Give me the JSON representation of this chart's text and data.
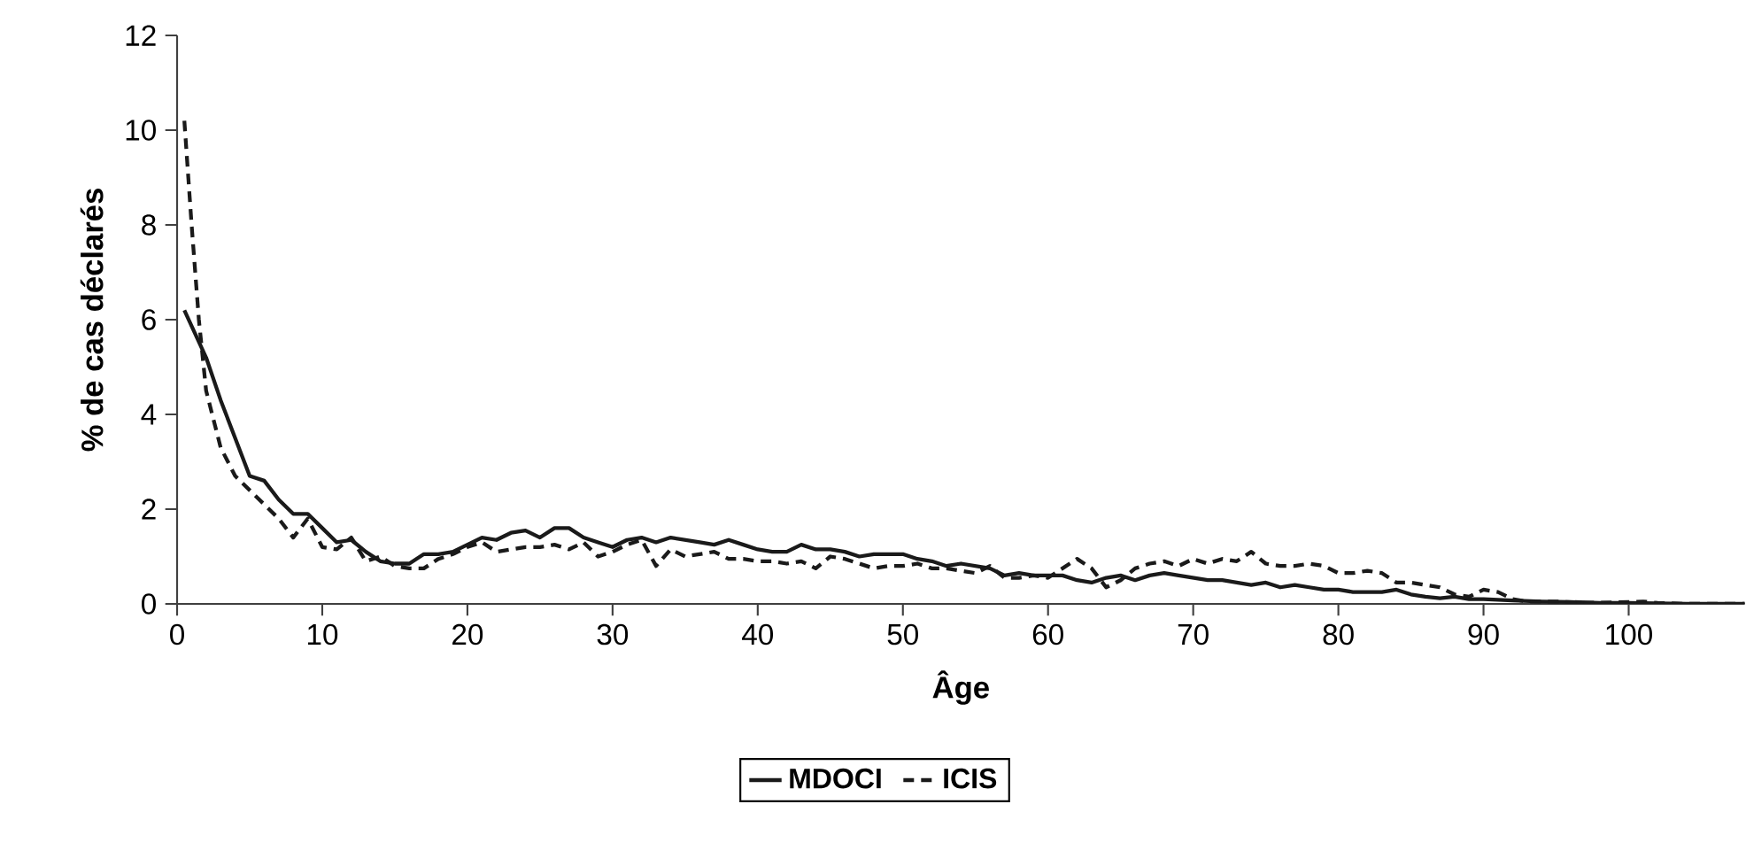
{
  "chart_data": {
    "type": "line",
    "xlabel": "Âge",
    "ylabel": "% de cas déclarés",
    "xlim": [
      0,
      108
    ],
    "ylim": [
      0,
      12
    ],
    "xticks": [
      0,
      10,
      20,
      30,
      40,
      50,
      60,
      70,
      80,
      90,
      100
    ],
    "yticks": [
      0,
      2,
      4,
      6,
      8,
      10,
      12
    ],
    "grid": false,
    "legend": "bottom",
    "marker": "none",
    "series": [
      {
        "name": "MDOCI",
        "color": "#1a1a1a",
        "line_style": "solid",
        "x": [
          0.5,
          2,
          3,
          4,
          5,
          6,
          7,
          8,
          9,
          10,
          11,
          12,
          13,
          14,
          15,
          16,
          17,
          18,
          19,
          20,
          21,
          22,
          23,
          24,
          25,
          26,
          27,
          28,
          29,
          30,
          31,
          32,
          33,
          34,
          35,
          36,
          37,
          38,
          39,
          40,
          41,
          42,
          43,
          44,
          45,
          46,
          47,
          48,
          49,
          50,
          51,
          52,
          53,
          54,
          55,
          56,
          57,
          58,
          59,
          60,
          61,
          62,
          63,
          64,
          65,
          66,
          67,
          68,
          69,
          70,
          71,
          72,
          73,
          74,
          75,
          76,
          77,
          78,
          79,
          80,
          81,
          82,
          83,
          84,
          85,
          86,
          87,
          88,
          89,
          90,
          92,
          94,
          96,
          98,
          100,
          102,
          104,
          108
        ],
        "values": [
          6.2,
          5.2,
          4.3,
          3.5,
          2.7,
          2.6,
          2.2,
          1.9,
          1.9,
          1.6,
          1.3,
          1.35,
          1.1,
          0.9,
          0.85,
          0.85,
          1.05,
          1.05,
          1.1,
          1.25,
          1.4,
          1.35,
          1.5,
          1.55,
          1.4,
          1.6,
          1.6,
          1.4,
          1.3,
          1.2,
          1.35,
          1.4,
          1.3,
          1.4,
          1.35,
          1.3,
          1.25,
          1.35,
          1.25,
          1.15,
          1.1,
          1.1,
          1.25,
          1.15,
          1.15,
          1.1,
          1.0,
          1.05,
          1.05,
          1.05,
          0.95,
          0.9,
          0.8,
          0.85,
          0.8,
          0.75,
          0.6,
          0.65,
          0.6,
          0.6,
          0.6,
          0.5,
          0.45,
          0.55,
          0.6,
          0.5,
          0.6,
          0.65,
          0.6,
          0.55,
          0.5,
          0.5,
          0.45,
          0.4,
          0.45,
          0.35,
          0.4,
          0.35,
          0.3,
          0.3,
          0.25,
          0.25,
          0.25,
          0.3,
          0.2,
          0.15,
          0.12,
          0.15,
          0.1,
          0.1,
          0.07,
          0.05,
          0.04,
          0.02,
          0.02,
          0.01,
          0,
          0
        ]
      },
      {
        "name": "ICIS",
        "color": "#1a1a1a",
        "line_style": "dashed",
        "x": [
          0.5,
          1,
          1.5,
          2,
          3,
          4,
          5,
          6,
          7,
          8,
          9,
          10,
          11,
          12,
          13,
          14,
          15,
          16,
          17,
          18,
          19,
          20,
          21,
          22,
          23,
          24,
          25,
          26,
          27,
          28,
          29,
          30,
          31,
          32,
          33,
          34,
          35,
          36,
          37,
          38,
          39,
          40,
          41,
          42,
          43,
          44,
          45,
          46,
          47,
          48,
          49,
          50,
          51,
          52,
          53,
          54,
          55,
          56,
          57,
          58,
          59,
          60,
          61,
          62,
          63,
          64,
          65,
          66,
          67,
          68,
          69,
          70,
          71,
          72,
          73,
          74,
          75,
          76,
          77,
          78,
          79,
          80,
          81,
          82,
          83,
          84,
          85,
          86,
          87,
          88,
          89,
          90,
          91,
          92,
          93,
          95,
          97,
          99,
          101,
          102,
          104,
          108
        ],
        "values": [
          10.2,
          8,
          6,
          4.5,
          3.3,
          2.7,
          2.4,
          2.1,
          1.8,
          1.4,
          1.8,
          1.2,
          1.15,
          1.4,
          0.9,
          1.0,
          0.8,
          0.75,
          0.75,
          0.95,
          1.05,
          1.2,
          1.3,
          1.1,
          1.15,
          1.2,
          1.2,
          1.25,
          1.15,
          1.3,
          1.0,
          1.1,
          1.25,
          1.35,
          0.8,
          1.15,
          1.0,
          1.05,
          1.1,
          0.95,
          0.95,
          0.9,
          0.9,
          0.85,
          0.9,
          0.75,
          1.0,
          0.95,
          0.85,
          0.75,
          0.8,
          0.8,
          0.85,
          0.75,
          0.75,
          0.7,
          0.65,
          0.8,
          0.55,
          0.55,
          0.6,
          0.55,
          0.75,
          0.95,
          0.75,
          0.35,
          0.5,
          0.75,
          0.85,
          0.9,
          0.8,
          0.95,
          0.85,
          0.95,
          0.9,
          1.1,
          0.85,
          0.8,
          0.8,
          0.85,
          0.8,
          0.65,
          0.65,
          0.7,
          0.65,
          0.45,
          0.45,
          0.4,
          0.35,
          0.2,
          0.15,
          0.3,
          0.25,
          0.1,
          0.05,
          0.05,
          0.02,
          0.03,
          0.05,
          0.02,
          0,
          0
        ]
      }
    ]
  }
}
